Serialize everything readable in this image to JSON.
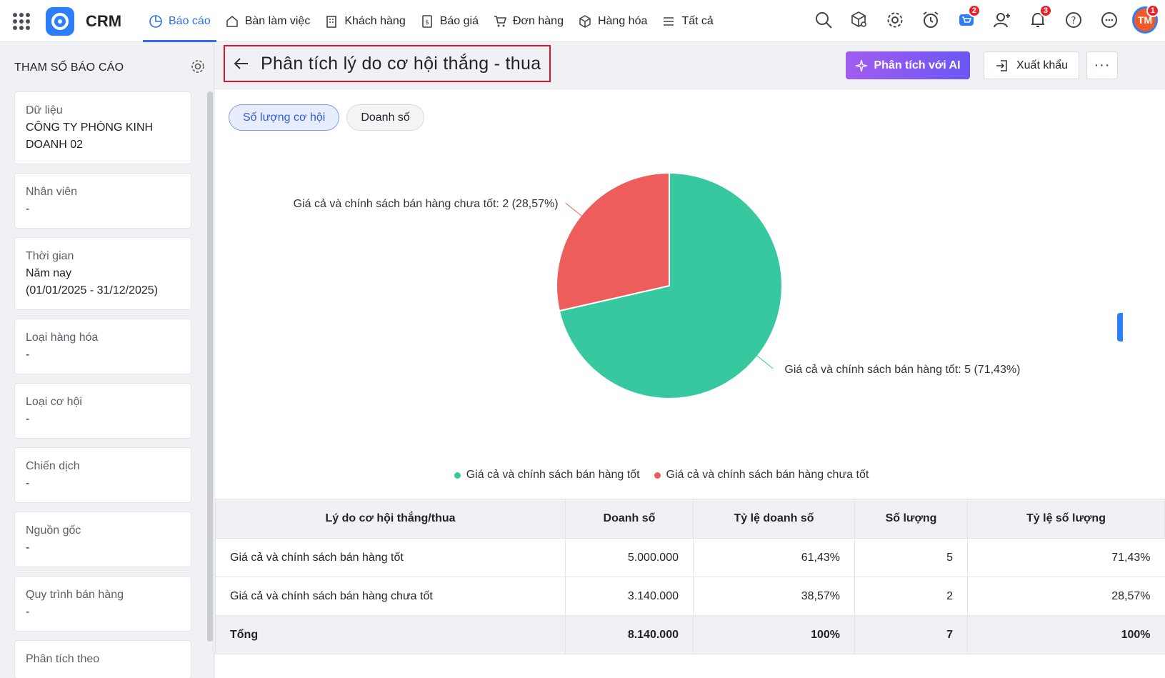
{
  "app": {
    "name": "CRM"
  },
  "nav": {
    "items": [
      {
        "label": "Báo cáo",
        "icon": "report-icon",
        "active": true
      },
      {
        "label": "Bàn làm việc",
        "icon": "home-icon"
      },
      {
        "label": "Khách hàng",
        "icon": "building-icon"
      },
      {
        "label": "Báo giá",
        "icon": "quote-icon"
      },
      {
        "label": "Đơn hàng",
        "icon": "cart-icon"
      },
      {
        "label": "Hàng hóa",
        "icon": "box-icon"
      },
      {
        "label": "Tất cả",
        "icon": "menu-icon"
      }
    ],
    "badges": {
      "cart": "2",
      "notifications": "3",
      "avatar": "1"
    },
    "avatar_initials": "TM"
  },
  "sidebar": {
    "title": "THAM SỐ BÁO CÁO",
    "params": [
      {
        "label": "Dữ liệu",
        "value": "CÔNG TY PHÒNG KINH DOANH 02"
      },
      {
        "label": "Nhân viên",
        "value": "-"
      },
      {
        "label": "Thời gian",
        "value": "Năm nay\n(01/01/2025 - 31/12/2025)"
      },
      {
        "label": "Loại hàng hóa",
        "value": "-"
      },
      {
        "label": "Loại cơ hội",
        "value": "-"
      },
      {
        "label": "Chiến dịch",
        "value": "-"
      },
      {
        "label": "Nguồn gốc",
        "value": "-"
      },
      {
        "label": "Quy trình bán hàng",
        "value": "-"
      },
      {
        "label": "Phân tích theo",
        "value": ""
      }
    ]
  },
  "header": {
    "title": "Phân tích lý do cơ hội thắng - thua",
    "ai_button": "Phân tích với AI",
    "export_button": "Xuất khẩu",
    "more_button": "···"
  },
  "toggles": [
    {
      "label": "Số lượng cơ hội",
      "active": true
    },
    {
      "label": "Doanh số",
      "active": false
    }
  ],
  "chart_data": {
    "type": "pie",
    "title": "",
    "slices": [
      {
        "name": "Giá cả và chính sách bán hàng tốt",
        "value": 5,
        "percent": "71,43%",
        "label": "Giá cả và chính sách bán hàng tốt: 5 (71,43%)",
        "color": "#38c8a0"
      },
      {
        "name": "Giá cả và chính sách bán hàng chưa tốt",
        "value": 2,
        "percent": "28,57%",
        "label": "Giá cả và chính sách bán hàng chưa tốt: 2 (28,57%)",
        "color": "#ec5d5c"
      }
    ],
    "legend_position": "bottom-center"
  },
  "table": {
    "headers": [
      "Lý do cơ hội thắng/thua",
      "Doanh số",
      "Tỷ lệ doanh số",
      "Số lượng",
      "Tỷ lệ số lượng"
    ],
    "rows": [
      [
        "Giá cả và chính sách bán hàng tốt",
        "5.000.000",
        "61,43%",
        "5",
        "71,43%"
      ],
      [
        "Giá cả và chính sách bán hàng chưa tốt",
        "3.140.000",
        "38,57%",
        "2",
        "28,57%"
      ]
    ],
    "total": [
      "Tổng",
      "8.140.000",
      "100%",
      "7",
      "100%"
    ]
  }
}
